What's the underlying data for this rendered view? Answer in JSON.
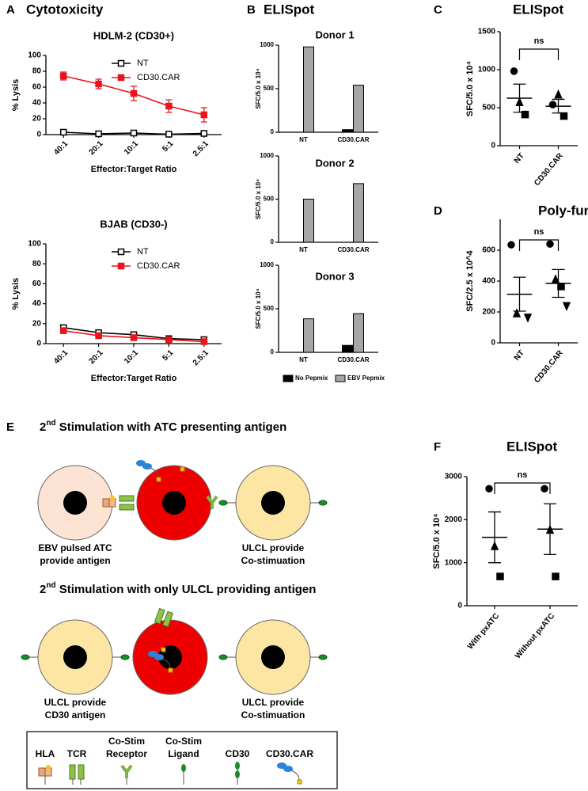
{
  "chart_data": [
    {
      "type": "line",
      "panel": "A",
      "section": "Cytotoxicity",
      "title": "HDLM-2 (CD30+)",
      "x_label": "Effector:Target Ratio",
      "y_label": "% Lysis",
      "categories": [
        "40:1",
        "20:1",
        "10:1",
        "5:1",
        "2.5:1"
      ],
      "ylim": [
        0,
        100
      ],
      "yticks": [
        0,
        20,
        40,
        60,
        80,
        100
      ],
      "series": [
        {
          "name": "NT",
          "color": "#000000",
          "marker": "open-square",
          "values": [
            3,
            1,
            2,
            0.5,
            1.5
          ],
          "errors": [
            1,
            1,
            1,
            1,
            1
          ]
        },
        {
          "name": "CD30.CAR",
          "color": "#e8141b",
          "marker": "square",
          "values": [
            74,
            64,
            52,
            36,
            25
          ],
          "errors": [
            5,
            6,
            9,
            8,
            9
          ]
        }
      ]
    },
    {
      "type": "line",
      "title": "BJAB (CD30-)",
      "x_label": "Effector:Target Ratio",
      "y_label": "% Lysis",
      "categories": [
        "40:1",
        "20:1",
        "10:1",
        "5:1",
        "2.5:1"
      ],
      "ylim": [
        0,
        100
      ],
      "yticks": [
        0,
        20,
        40,
        60,
        80,
        100
      ],
      "series": [
        {
          "name": "NT",
          "color": "#000000",
          "marker": "open-square",
          "values": [
            16,
            11,
            9,
            5,
            4
          ],
          "errors": [
            2,
            1.5,
            1.5,
            1,
            1
          ]
        },
        {
          "name": "CD30.CAR",
          "color": "#e8141b",
          "marker": "square",
          "values": [
            13,
            8,
            6,
            4,
            2
          ],
          "errors": [
            2,
            1,
            1,
            1,
            1
          ]
        }
      ]
    },
    {
      "type": "bar",
      "panel": "B",
      "section": "ELISpot",
      "title": "Donor 1",
      "y_label": "SFC/5.0 x 10⁴",
      "categories": [
        "NT",
        "CD30.CAR"
      ],
      "ylim": [
        0,
        1000
      ],
      "yticks": [
        0,
        500,
        1000
      ],
      "series": [
        {
          "color": "#000000",
          "values": [
            0,
            30
          ]
        },
        {
          "color": "#a6a6a6",
          "values": [
            980,
            540
          ]
        }
      ]
    },
    {
      "type": "bar",
      "title": "Donor 2",
      "y_label": "SFC/5.0 x 10⁴",
      "categories": [
        "NT",
        "CD30.CAR"
      ],
      "ylim": [
        0,
        1000
      ],
      "yticks": [
        0,
        500,
        1000
      ],
      "series": [
        {
          "color": "#000000",
          "values": [
            0,
            0
          ]
        },
        {
          "color": "#a6a6a6",
          "values": [
            500,
            680
          ]
        }
      ]
    },
    {
      "type": "bar",
      "title": "Donor 3",
      "y_label": "SFC/5.0 x 10⁴",
      "categories": [
        "NT",
        "CD30.CAR"
      ],
      "ylim": [
        0,
        1000
      ],
      "yticks": [
        0,
        500,
        1000
      ],
      "series": [
        {
          "name": "No Pepmix",
          "color": "#000000",
          "values": [
            0,
            80
          ]
        },
        {
          "name": "EBV Pepmix",
          "color": "#a6a6a6",
          "values": [
            385,
            445
          ]
        }
      ]
    },
    {
      "type": "dot",
      "panel": "C",
      "title": "ELISpot",
      "y_label": "SFC/5.0 x 10⁴",
      "annotation": "ns",
      "categories": [
        "NT",
        "CD30.CAR"
      ],
      "ylim": [
        0,
        1500
      ],
      "yticks": [
        0,
        500,
        1000,
        1500
      ],
      "series": [
        {
          "marker": "circle",
          "values": [
            980,
            540
          ]
        },
        {
          "marker": "triangle",
          "values": [
            570,
            670
          ]
        },
        {
          "marker": "square",
          "values": [
            410,
            390
          ]
        }
      ],
      "mean": [
        625,
        520
      ],
      "sem": [
        185,
        90
      ]
    },
    {
      "type": "dot",
      "panel": "D",
      "title": "Poly-functionality",
      "y_label": "SFC/2.5 x 10^4",
      "annotation": "ns",
      "categories": [
        "NT",
        "CD30.CAR"
      ],
      "ylim": [
        0,
        800
      ],
      "yticks": [
        0,
        200,
        400,
        600
      ],
      "series": [
        {
          "marker": "circle",
          "values": [
            635,
            640
          ]
        },
        {
          "marker": "triangle",
          "values": [
            190,
            410
          ]
        },
        {
          "marker": "square",
          "values": [
            null,
            365
          ]
        },
        {
          "marker": "triangle-down",
          "values": [
            165,
            240
          ]
        }
      ],
      "mean": [
        315,
        385
      ],
      "sem": [
        110,
        90
      ]
    },
    {
      "type": "dot",
      "panel": "F",
      "title": "ELISpot",
      "y_label": "SFC/5.0 x 10⁴",
      "annotation": "ns",
      "categories": [
        "With pxATC",
        "Without pxATC"
      ],
      "ylim": [
        0,
        3000
      ],
      "yticks": [
        0,
        1000,
        2000,
        3000
      ],
      "series": [
        {
          "marker": "circle",
          "values": [
            2720,
            2720
          ]
        },
        {
          "marker": "triangle",
          "values": [
            1380,
            1760
          ]
        },
        {
          "marker": "square",
          "values": [
            680,
            680
          ]
        }
      ],
      "mean": [
        1590,
        1780
      ],
      "sem": [
        590,
        590
      ]
    }
  ],
  "diagram": {
    "panel": "E",
    "rows": [
      {
        "title": [
          "2",
          "nd",
          " Stimulation with ATC presenting antigen"
        ],
        "labels": [
          [
            "EBV pulsed ATC",
            "provide antigen"
          ],
          [
            "ULCL provide",
            "Co-stimuation"
          ]
        ]
      },
      {
        "title": [
          "2",
          "nd",
          " Stimulation with only ULCL providing antigen"
        ],
        "labels": [
          [
            "ULCL provide",
            "CD30 antigen"
          ],
          [
            "ULCL provide",
            "Co-stimuation"
          ]
        ]
      }
    ],
    "legend": [
      [
        "HLA"
      ],
      [
        "TCR"
      ],
      [
        "Co-Stim",
        "Receptor"
      ],
      [
        "Co-Stim",
        "Ligand"
      ],
      [
        "CD30"
      ],
      [
        "CD30.CAR"
      ]
    ]
  }
}
